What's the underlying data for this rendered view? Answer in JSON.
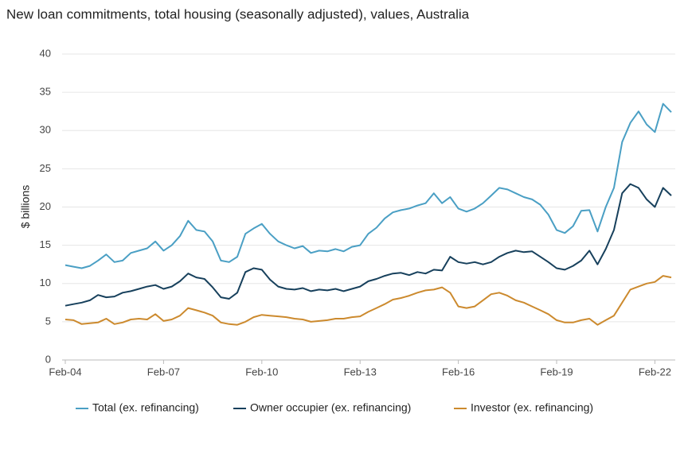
{
  "chart_data": {
    "type": "line",
    "title": "New loan commitments, total housing (seasonally adjusted), values, Australia",
    "y_label": "$ billions",
    "categories": [
      "Feb-04",
      null,
      null,
      null,
      null,
      null,
      null,
      null,
      null,
      null,
      null,
      null,
      "Feb-07",
      null,
      null,
      null,
      null,
      null,
      null,
      null,
      null,
      null,
      null,
      null,
      "Feb-10",
      null,
      null,
      null,
      null,
      null,
      null,
      null,
      null,
      null,
      null,
      null,
      "Feb-13",
      null,
      null,
      null,
      null,
      null,
      null,
      null,
      null,
      null,
      null,
      null,
      "Feb-16",
      null,
      null,
      null,
      null,
      null,
      null,
      null,
      null,
      null,
      null,
      null,
      "Feb-19",
      null,
      null,
      null,
      null,
      null,
      null,
      null,
      null,
      null,
      null,
      null,
      "Feb-22",
      null,
      null
    ],
    "series": [
      {
        "name": "Total (ex. refinancing)",
        "color": "#4a9fc4",
        "values": [
          12.4,
          12.2,
          12.0,
          12.3,
          13.0,
          13.8,
          12.8,
          13.0,
          14.0,
          14.3,
          14.6,
          15.5,
          14.3,
          15.0,
          16.2,
          18.2,
          17.0,
          16.8,
          15.5,
          13.0,
          12.8,
          13.5,
          16.5,
          17.2,
          17.8,
          16.5,
          15.5,
          15.0,
          14.6,
          14.9,
          14.0,
          14.3,
          14.2,
          14.5,
          14.2,
          14.8,
          15.0,
          16.5,
          17.3,
          18.5,
          19.3,
          19.6,
          19.8,
          20.2,
          20.5,
          21.8,
          20.5,
          21.3,
          19.8,
          19.4,
          19.8,
          20.5,
          21.5,
          22.5,
          22.3,
          21.8,
          21.3,
          21.0,
          20.3,
          19.0,
          17.0,
          16.6,
          17.5,
          19.5,
          19.6,
          16.8,
          20.0,
          22.5,
          28.5,
          31.0,
          32.5,
          30.8,
          29.8,
          33.5,
          32.4
        ]
      },
      {
        "name": "Owner occupier (ex. refinancing)",
        "color": "#17405c",
        "values": [
          7.1,
          7.3,
          7.5,
          7.8,
          8.5,
          8.2,
          8.3,
          8.8,
          9.0,
          9.3,
          9.6,
          9.8,
          9.3,
          9.6,
          10.3,
          11.3,
          10.8,
          10.6,
          9.5,
          8.2,
          8.0,
          8.8,
          11.5,
          12.0,
          11.8,
          10.5,
          9.6,
          9.3,
          9.2,
          9.4,
          9.0,
          9.2,
          9.1,
          9.3,
          9.0,
          9.3,
          9.6,
          10.3,
          10.6,
          11.0,
          11.3,
          11.4,
          11.1,
          11.5,
          11.3,
          11.8,
          11.7,
          13.5,
          12.8,
          12.6,
          12.8,
          12.5,
          12.8,
          13.5,
          14.0,
          14.3,
          14.1,
          14.2,
          13.5,
          12.8,
          12.0,
          11.8,
          12.3,
          13.0,
          14.3,
          12.5,
          14.5,
          17.0,
          21.8,
          23.0,
          22.5,
          21.0,
          20.0,
          22.5,
          21.5
        ]
      },
      {
        "name": "Investor (ex. refinancing)",
        "color": "#cc8a2e",
        "values": [
          5.3,
          5.2,
          4.7,
          4.8,
          4.9,
          5.4,
          4.7,
          4.9,
          5.3,
          5.4,
          5.3,
          6.0,
          5.1,
          5.3,
          5.8,
          6.8,
          6.5,
          6.2,
          5.8,
          4.9,
          4.7,
          4.6,
          5.0,
          5.6,
          5.9,
          5.8,
          5.7,
          5.6,
          5.4,
          5.3,
          5.0,
          5.1,
          5.2,
          5.4,
          5.4,
          5.6,
          5.7,
          6.3,
          6.8,
          7.3,
          7.9,
          8.1,
          8.4,
          8.8,
          9.1,
          9.2,
          9.5,
          8.8,
          7.0,
          6.8,
          7.0,
          7.8,
          8.6,
          8.8,
          8.4,
          7.8,
          7.5,
          7.0,
          6.5,
          6.0,
          5.2,
          4.9,
          4.9,
          5.2,
          5.4,
          4.6,
          5.2,
          5.8,
          7.5,
          9.2,
          9.6,
          10.0,
          10.2,
          11.0,
          10.8
        ]
      }
    ],
    "ylim": [
      0,
      40
    ],
    "yticks": [
      0,
      5,
      10,
      15,
      20,
      25,
      30,
      35,
      40
    ],
    "grid": true,
    "legend": "bottom"
  }
}
